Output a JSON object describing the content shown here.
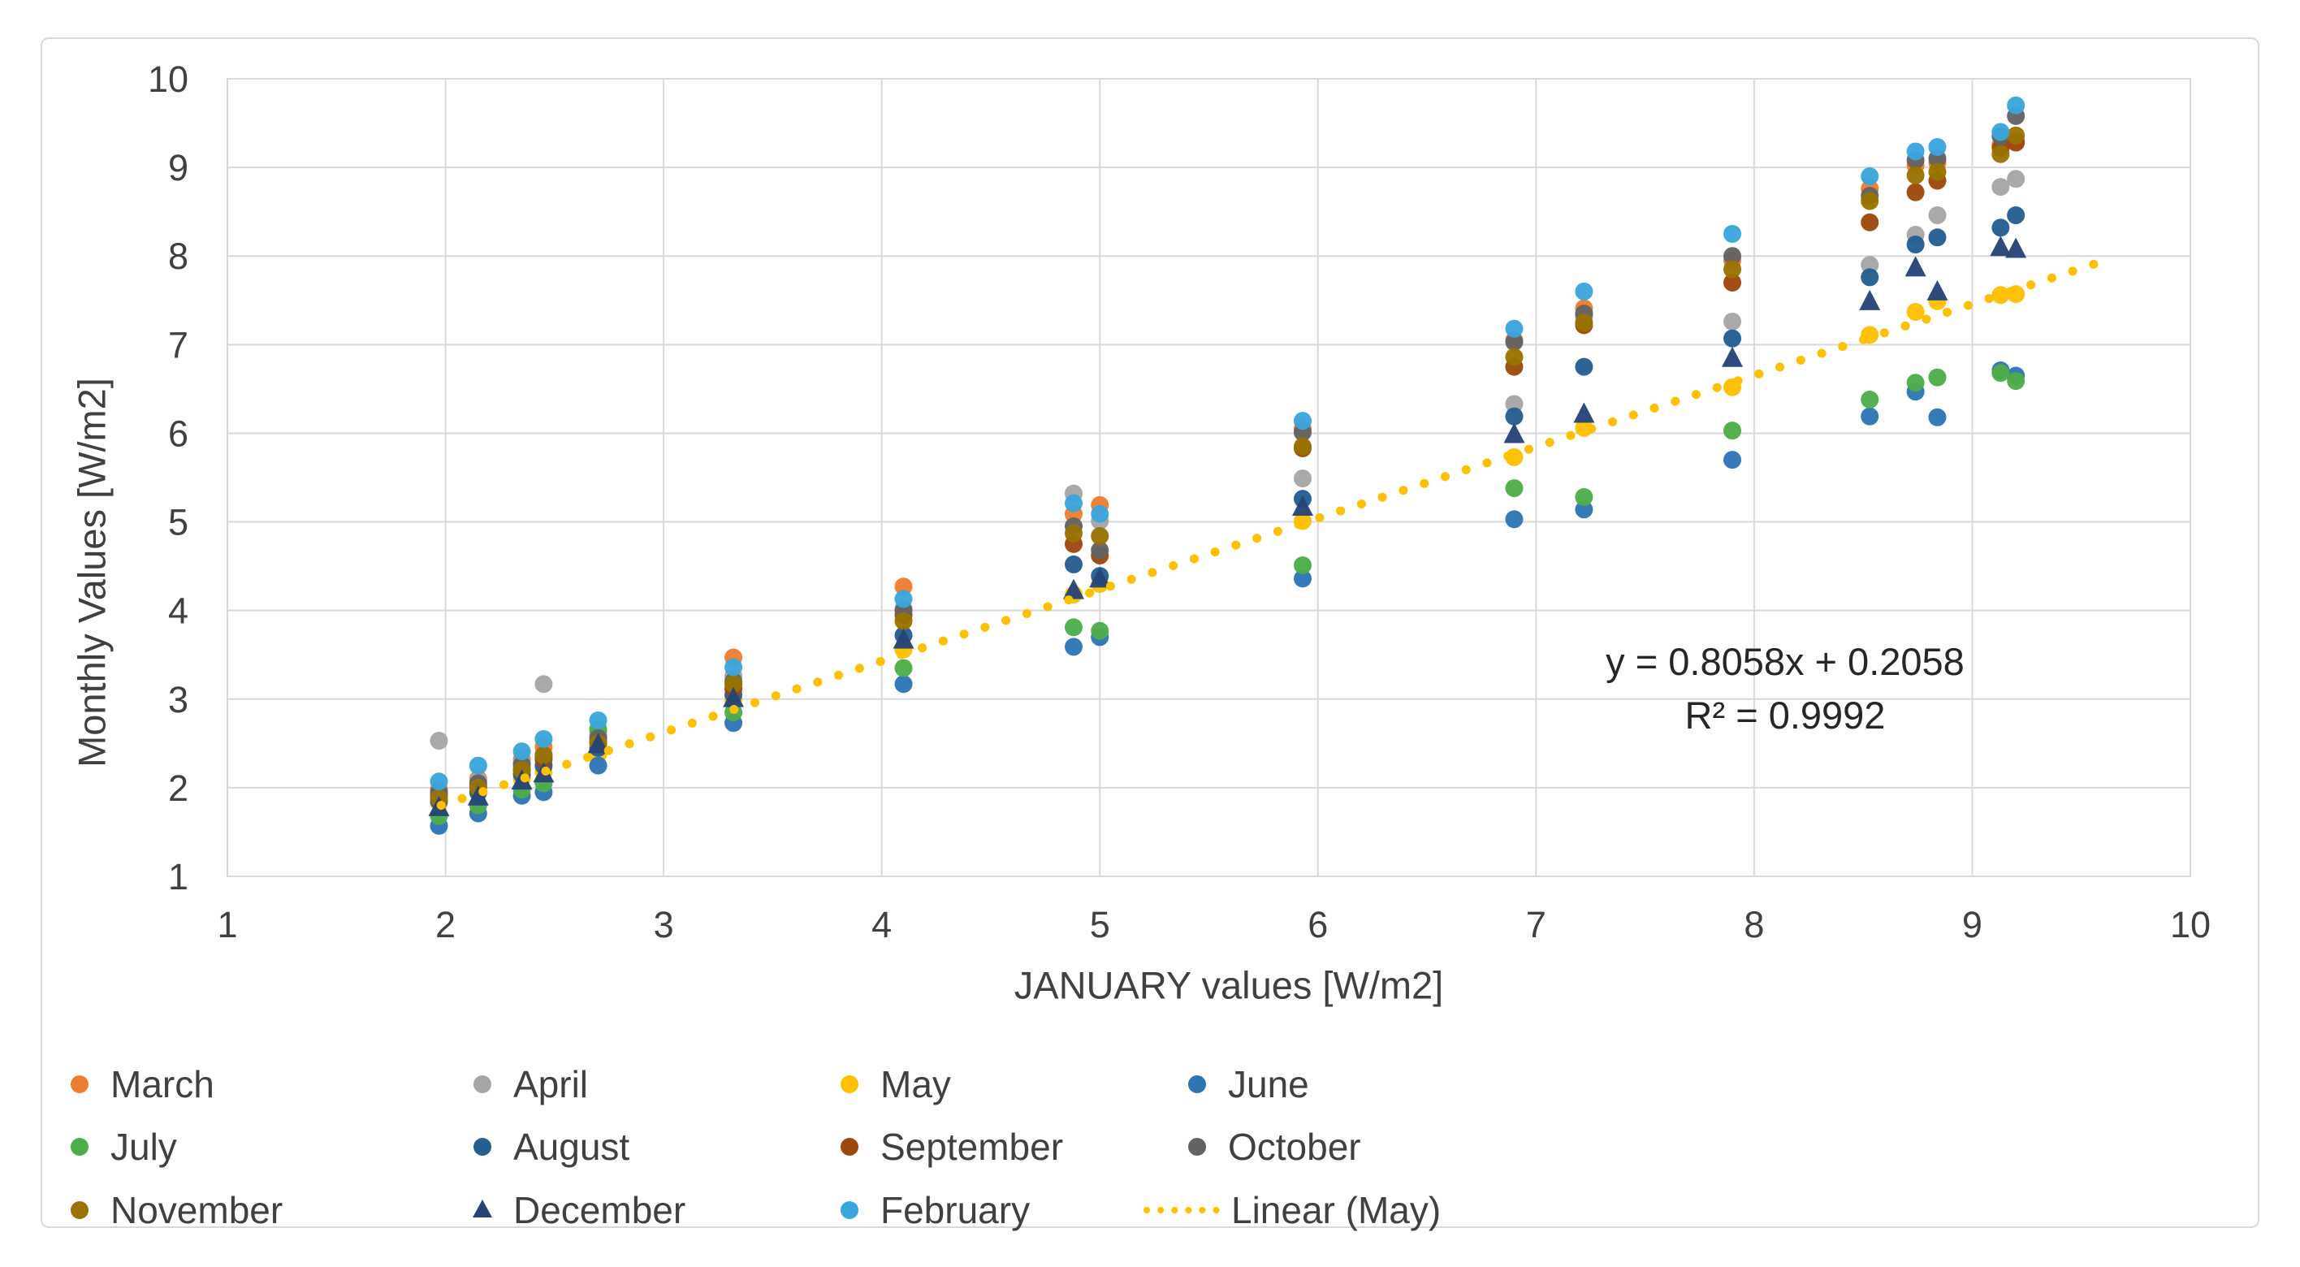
{
  "chart_data": {
    "type": "scatter",
    "title": "",
    "xlabel": "JANUARY values [W/m2]",
    "ylabel": "Monthly Values [W/m2]",
    "xlim": [
      1,
      10
    ],
    "ylim": [
      1,
      10
    ],
    "xticks": [
      1,
      2,
      3,
      4,
      5,
      6,
      7,
      8,
      9,
      10
    ],
    "yticks": [
      1,
      2,
      3,
      4,
      5,
      6,
      7,
      8,
      9,
      10
    ],
    "grid": true,
    "legend_position": "bottom",
    "x": [
      1.97,
      2.15,
      2.35,
      2.45,
      2.7,
      3.32,
      4.1,
      4.88,
      5.0,
      5.93,
      6.9,
      7.22,
      7.9,
      8.53,
      8.74,
      8.84,
      9.13,
      9.2
    ],
    "series": [
      {
        "name": "March",
        "color": "#ED7D31",
        "marker": "circle",
        "values": [
          1.98,
          2.1,
          2.32,
          2.46,
          2.62,
          3.47,
          4.27,
          5.09,
          5.19,
          6.05,
          7.05,
          7.41,
          7.95,
          8.76,
          9.02,
          9.05,
          9.25,
          9.3
        ]
      },
      {
        "name": "April",
        "color": "#A6A6A6",
        "marker": "circle",
        "values": [
          2.53,
          2.08,
          2.28,
          3.17,
          2.58,
          3.26,
          4.02,
          5.32,
          5.01,
          5.49,
          6.33,
          7.32,
          7.26,
          7.9,
          8.24,
          8.46,
          8.78,
          8.87
        ]
      },
      {
        "name": "May",
        "color": "#FFC000",
        "marker": "circle",
        "values": [
          1.83,
          1.94,
          2.1,
          2.18,
          2.38,
          3.0,
          3.56,
          4.18,
          4.3,
          5.01,
          5.73,
          6.06,
          6.52,
          7.11,
          7.37,
          7.49,
          7.56,
          7.57
        ]
      },
      {
        "name": "June",
        "color": "#2E75B6",
        "marker": "circle",
        "values": [
          1.57,
          1.71,
          1.91,
          1.95,
          2.25,
          2.73,
          3.17,
          3.59,
          3.7,
          4.36,
          5.03,
          5.14,
          5.7,
          6.19,
          6.47,
          6.18,
          6.71,
          6.65
        ]
      },
      {
        "name": "July",
        "color": "#4EAD4A",
        "marker": "circle",
        "values": [
          1.68,
          1.8,
          1.98,
          2.05,
          2.66,
          2.85,
          3.35,
          3.81,
          3.77,
          4.51,
          5.38,
          5.28,
          6.03,
          6.38,
          6.57,
          6.63,
          6.68,
          6.59
        ]
      },
      {
        "name": "August",
        "color": "#255E91",
        "marker": "circle",
        "values": [
          1.85,
          1.95,
          2.15,
          2.25,
          2.45,
          3.05,
          3.72,
          4.52,
          4.39,
          5.26,
          6.19,
          6.75,
          7.07,
          7.76,
          8.13,
          8.21,
          8.32,
          8.46
        ]
      },
      {
        "name": "September",
        "color": "#9E480E",
        "marker": "circle",
        "values": [
          1.92,
          2.02,
          2.21,
          2.32,
          2.52,
          3.12,
          3.95,
          4.75,
          4.62,
          5.83,
          6.75,
          7.22,
          7.7,
          8.38,
          8.72,
          8.85,
          9.22,
          9.28
        ]
      },
      {
        "name": "October",
        "color": "#636363",
        "marker": "circle",
        "values": [
          1.95,
          2.05,
          2.26,
          2.36,
          2.56,
          3.2,
          4.0,
          4.95,
          4.68,
          6.01,
          7.03,
          7.35,
          8.0,
          8.68,
          9.08,
          9.1,
          9.35,
          9.58
        ]
      },
      {
        "name": "November",
        "color": "#997300",
        "marker": "circle",
        "values": [
          1.88,
          2.0,
          2.2,
          2.37,
          2.5,
          3.17,
          3.88,
          4.87,
          4.84,
          5.85,
          6.86,
          7.25,
          7.85,
          8.62,
          8.91,
          8.95,
          9.15,
          9.36
        ]
      },
      {
        "name": "December",
        "color": "#264478",
        "marker": "triangle",
        "values": [
          1.78,
          1.9,
          2.08,
          2.16,
          2.49,
          3.01,
          3.67,
          4.23,
          4.36,
          5.17,
          5.99,
          6.22,
          6.85,
          7.49,
          7.87,
          7.6,
          8.1,
          8.08
        ]
      },
      {
        "name": "February",
        "color": "#3AA4DC",
        "marker": "circle",
        "values": [
          2.07,
          2.25,
          2.41,
          2.55,
          2.76,
          3.36,
          4.13,
          5.21,
          5.09,
          6.14,
          7.18,
          7.6,
          8.25,
          8.9,
          9.18,
          9.23,
          9.4,
          9.7
        ]
      }
    ],
    "trendline": {
      "label": "Linear (May)",
      "color": "#FFC000",
      "style": "dotted",
      "slope": 0.8058,
      "intercept": 0.2058,
      "x_start": 1.98,
      "x_end": 9.62
    },
    "annotation": {
      "line1": "y = 0.8058x + 0.2058",
      "line2": "R² = 0.9992"
    },
    "colors": {
      "gridline": "#D9D9D9",
      "plot_border": "#D9D9D9",
      "frame_border": "#D9D9D9",
      "axis_text": "#404040"
    }
  }
}
